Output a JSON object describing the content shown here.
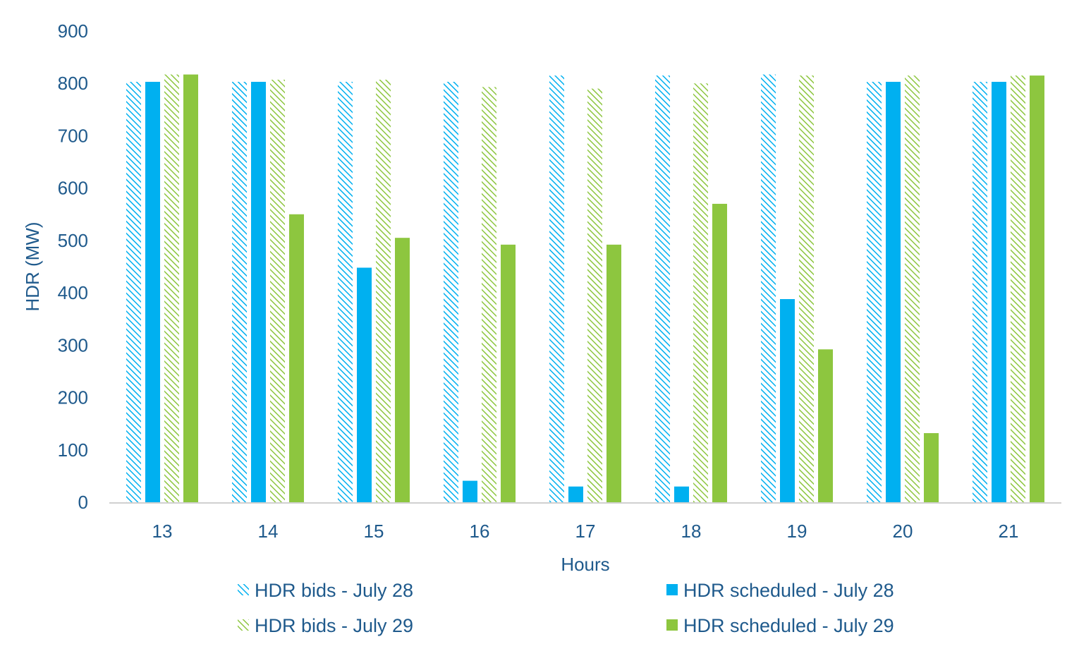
{
  "chart_data": {
    "type": "bar",
    "title": "",
    "xlabel": "Hours",
    "ylabel": "HDR (MW)",
    "ylim": [
      0,
      900
    ],
    "yticks": [
      "0",
      "100",
      "200",
      "300",
      "400",
      "500",
      "600",
      "700",
      "800",
      "900"
    ],
    "categories": [
      "13",
      "14",
      "15",
      "16",
      "17",
      "18",
      "19",
      "20",
      "21"
    ],
    "grid": false,
    "legend_position": "bottom",
    "series": [
      {
        "name": "HDR bids - July 28",
        "style": "hatched",
        "color": "#00b0f0",
        "values": [
          803,
          803,
          803,
          803,
          815,
          815,
          817,
          803,
          803
        ]
      },
      {
        "name": "HDR scheduled - July 28",
        "style": "solid",
        "color": "#00b0f0",
        "values": [
          803,
          803,
          448,
          41,
          30,
          30,
          388,
          803,
          803
        ]
      },
      {
        "name": "HDR bids - July 29",
        "style": "hatched",
        "color": "#8dc63f",
        "values": [
          817,
          807,
          807,
          793,
          790,
          800,
          815,
          815,
          815
        ]
      },
      {
        "name": "HDR scheduled - July 29",
        "style": "solid",
        "color": "#8dc63f",
        "values": [
          817,
          550,
          505,
          492,
          492,
          570,
          292,
          132,
          815
        ]
      }
    ]
  }
}
